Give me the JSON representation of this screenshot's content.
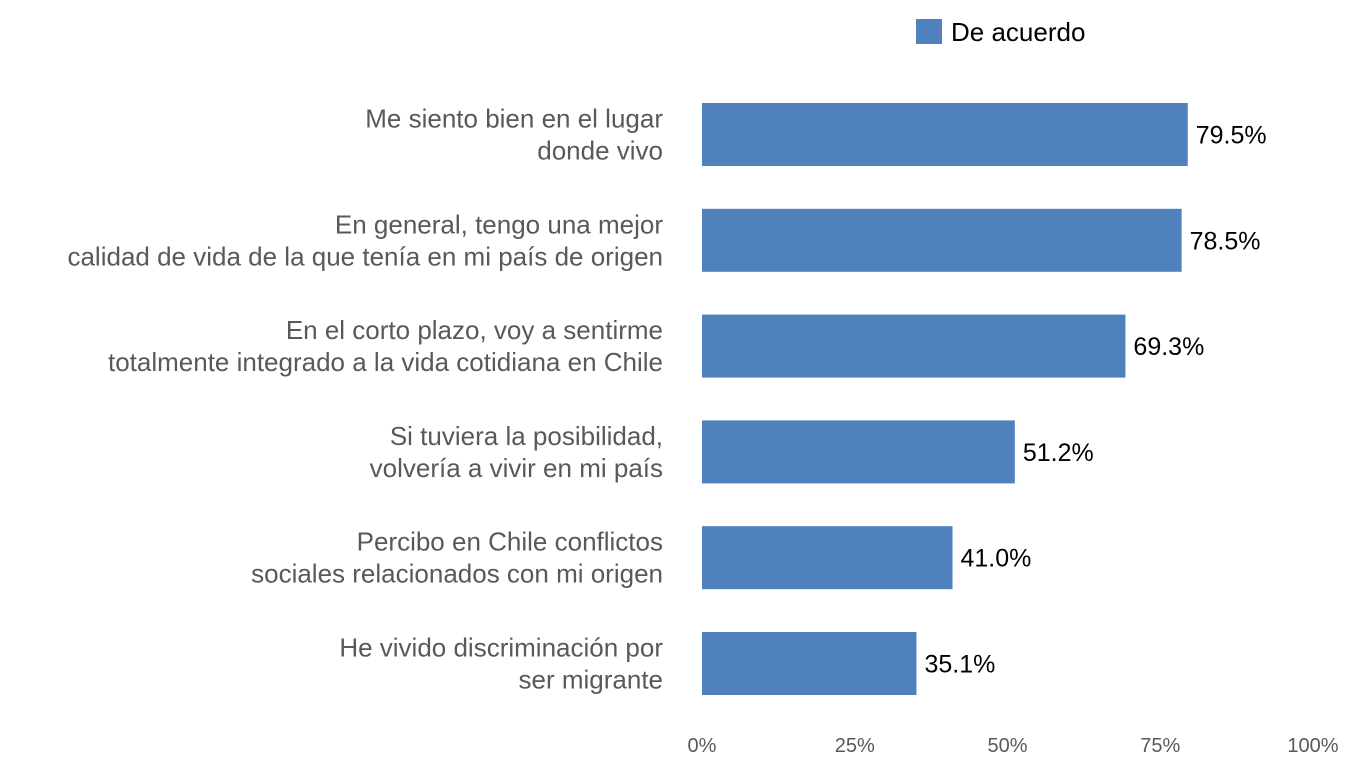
{
  "chart_data": {
    "type": "bar",
    "orientation": "horizontal",
    "categories": [
      [
        "Me siento bien en el lugar",
        "donde vivo"
      ],
      [
        "En general, tengo una mejor",
        "calidad de vida de la que tenía en mi país de origen"
      ],
      [
        "En el corto plazo, voy a sentirme",
        "totalmente integrado a la vida cotidiana en Chile"
      ],
      [
        "Si tuviera la posibilidad,",
        "volvería a vivir en mi país"
      ],
      [
        "Percibo en Chile conflictos",
        "sociales relacionados con mi origen"
      ],
      [
        "He vivido discriminación por",
        "ser migrante"
      ]
    ],
    "series": [
      {
        "name": "De acuerdo",
        "color": "#4f81bd",
        "values": [
          79.5,
          78.5,
          69.3,
          51.2,
          41.0,
          35.1
        ],
        "labels": [
          "79.5%",
          "78.5%",
          "69.3%",
          "51.2%",
          "41.0%",
          "35.1%"
        ]
      }
    ],
    "xlim": [
      0,
      100
    ],
    "xticks": [
      0,
      25,
      50,
      75,
      100
    ],
    "xtick_labels": [
      "0%",
      "25%",
      "50%",
      "75%",
      "100%"
    ],
    "grid": false,
    "legend_position": "top"
  }
}
